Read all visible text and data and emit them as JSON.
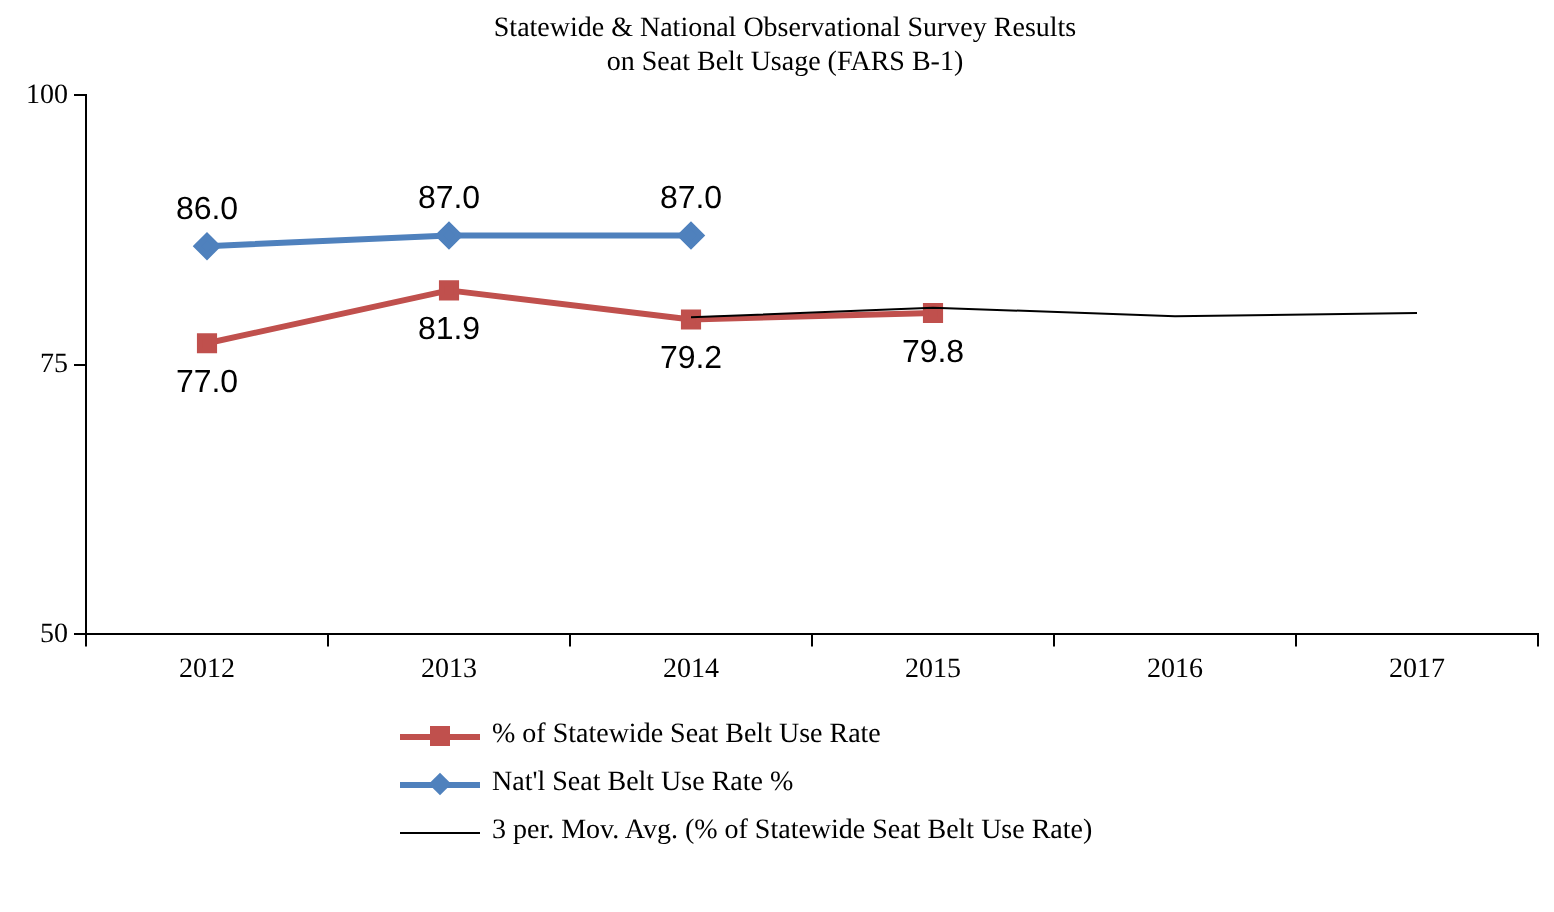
{
  "chart_data": {
    "type": "line",
    "title": [
      "Statewide & National Observational Survey Results",
      "on Seat Belt Usage (FARS B-1)"
    ],
    "categories": [
      "2012",
      "2013",
      "2014",
      "2015",
      "2016",
      "2017"
    ],
    "series": [
      {
        "name": "% of Statewide Seat Belt Use Rate",
        "color": "#c0504d",
        "marker": "square",
        "values": [
          77.0,
          81.9,
          79.2,
          79.8,
          null,
          null
        ],
        "value_labels": [
          "77.0",
          "81.9",
          "79.2",
          "79.8",
          null,
          null
        ]
      },
      {
        "name": "Nat'l Seat Belt Use Rate %",
        "color": "#4f81bd",
        "marker": "diamond",
        "values": [
          86.0,
          87.0,
          87.0,
          null,
          null,
          null
        ],
        "value_labels": [
          "86.0",
          "87.0",
          "87.0",
          null,
          null,
          null
        ]
      },
      {
        "name": "3 per. Mov. Avg. (% of Statewide Seat Belt Use Rate)",
        "color": "#000000",
        "marker": "none",
        "values": [
          null,
          null,
          79.4,
          80.3,
          79.5,
          79.8
        ]
      }
    ],
    "ylim": [
      50,
      100
    ],
    "yticks": [
      50,
      75,
      100
    ],
    "grid": false,
    "legend": "bottom"
  }
}
